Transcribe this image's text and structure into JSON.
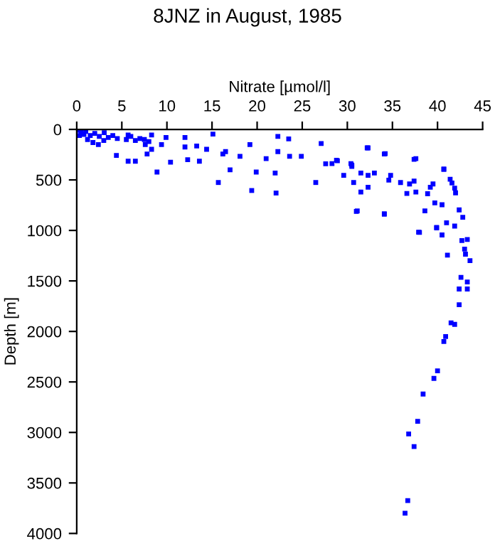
{
  "chart_data": {
    "type": "scatter",
    "title": "8JNZ in August, 1985",
    "xlabel": "Nitrate [µmol/l]",
    "ylabel": "Depth [m]",
    "series": [
      {
        "color": "#0000ff",
        "x": [
          0.2,
          0.5,
          0.8,
          1.0,
          1.5,
          2.0,
          2.5,
          3.5,
          4.0,
          4.5,
          5.5,
          6.5,
          7.5,
          8.0,
          1.2,
          0.3,
          6.0,
          7.0,
          1.8,
          3.0,
          3.05,
          5.7,
          8.3,
          9.9,
          12.0,
          15.1,
          22.3,
          23.5,
          2.4,
          4.4,
          5.7,
          6.5,
          8.9,
          10.4,
          12.3,
          13.6,
          15.7,
          16.2,
          17.0,
          19.2,
          19.4,
          19.9,
          22.0,
          22.1,
          22.3,
          23.6,
          24.9,
          27.1,
          26.5,
          27.6,
          28.9,
          30.5,
          31.0,
          32.3,
          34.1,
          34.1,
          37.6,
          38.0,
          40.7,
          39.9,
          43.1,
          9.4,
          12.0,
          14.4,
          16.5,
          18.1,
          21.0,
          13.3,
          7.6,
          8.3,
          7.8,
          32.2,
          34.2,
          37.4,
          28.8,
          30.5,
          28.3,
          30.4,
          31.5,
          32.3,
          33.0,
          34.8,
          35.9,
          37.4,
          34.6,
          32.3,
          31.5,
          30.7,
          29.6,
          43.3,
          42.6,
          43.3,
          42.4,
          43.3,
          43.6,
          43.0,
          41.1,
          42.7,
          41.9,
          42.8,
          42.4,
          41.0,
          39.9,
          40.5,
          37.9,
          40.5,
          39.7,
          38.6,
          34.1,
          31.1,
          41.4,
          40.7,
          41.9,
          41.6,
          42.0,
          38.9,
          36.6,
          37.6,
          39.2,
          39.5,
          36.9,
          42.4,
          41.5,
          41.9,
          40.9,
          40.7,
          40.0,
          39.6,
          38.4,
          37.8,
          36.8,
          37.4,
          36.7,
          36.4
        ],
        "values": [
          10,
          30,
          50,
          20,
          60,
          40,
          70,
          80,
          60,
          90,
          100,
          110,
          100,
          120,
          100,
          60,
          70,
          90,
          130,
          110,
          33,
          56,
          56,
          80,
          80,
          47,
          70,
          94,
          150,
          258,
          315,
          315,
          422,
          324,
          300,
          315,
          526,
          244,
          400,
          150,
          605,
          422,
          432,
          630,
          220,
          267,
          267,
          140,
          526,
          340,
          310,
          366,
          812,
          183,
          244,
          835,
          290,
          1020,
          394,
          975,
          1235,
          150,
          174,
          197,
          220,
          267,
          290,
          164,
          150,
          197,
          244,
          183,
          240,
          296,
          305,
          352,
          338,
          338,
          432,
          455,
          432,
          455,
          526,
          512,
          502,
          573,
          620,
          526,
          455,
          1090,
          1465,
          1510,
          1580,
          1580,
          1300,
          1185,
          1245,
          1100,
          957,
          870,
          797,
          925,
          970,
          1045,
          1018,
          746,
          727,
          807,
          840,
          807,
          493,
          394,
          582,
          530,
          628,
          637,
          634,
          620,
          573,
          540,
          540,
          1736,
          1915,
          1930,
          2050,
          2100,
          2390,
          2465,
          2620,
          2890,
          3015,
          3140,
          3675,
          3800
        ]
      }
    ],
    "marker": "square",
    "xlim": [
      0,
      45
    ],
    "xticks": [
      0,
      5,
      10,
      15,
      20,
      25,
      30,
      35,
      40,
      45
    ],
    "ylim": [
      4000,
      0
    ],
    "yticks": [
      0,
      500,
      1000,
      1500,
      2000,
      2500,
      3000,
      3500,
      4000
    ],
    "grid": false,
    "legend": false
  }
}
